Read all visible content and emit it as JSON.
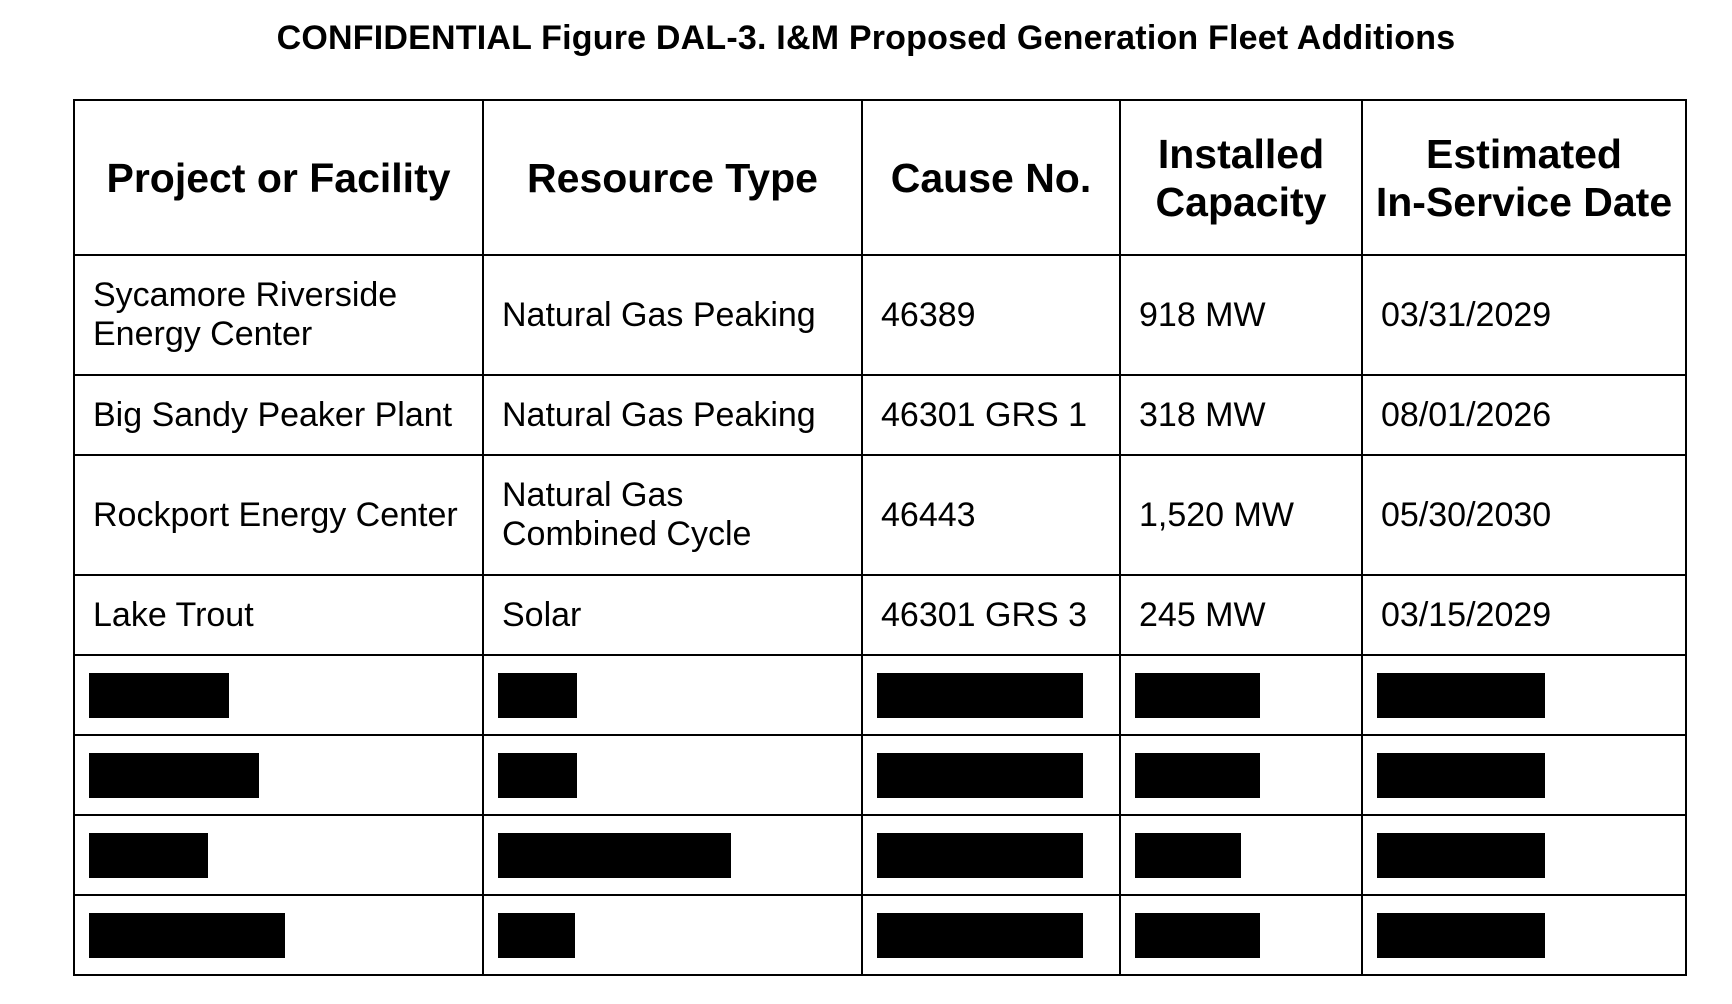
{
  "title": "CONFIDENTIAL Figure DAL-3. I&M Proposed Generation Fleet Additions",
  "table": {
    "headers": [
      {
        "line1": "Project or Facility",
        "line2": ""
      },
      {
        "line1": "Resource Type",
        "line2": ""
      },
      {
        "line1": "Cause No.",
        "line2": ""
      },
      {
        "line1": "Installed",
        "line2": "Capacity"
      },
      {
        "line1": "Estimated",
        "line2": "In-Service Date"
      }
    ],
    "rows": [
      {
        "project": {
          "line1": "Sycamore Riverside",
          "line2": "Energy Center"
        },
        "resource_type": {
          "line1": "Natural Gas Peaking",
          "line2": ""
        },
        "cause_no": "46389",
        "capacity": "918 MW",
        "in_service_date": "03/31/2029"
      },
      {
        "project": {
          "line1": "Big Sandy Peaker Plant",
          "line2": ""
        },
        "resource_type": {
          "line1": "Natural Gas Peaking",
          "line2": ""
        },
        "cause_no": "46301 GRS 1",
        "capacity": "318 MW",
        "in_service_date": "08/01/2026"
      },
      {
        "project": {
          "line1": "Rockport Energy Center",
          "line2": ""
        },
        "resource_type": {
          "line1": "Natural Gas",
          "line2": "Combined Cycle"
        },
        "cause_no": "46443",
        "capacity": "1,520 MW",
        "in_service_date": "05/30/2030"
      },
      {
        "project": {
          "line1": "Lake Trout",
          "line2": ""
        },
        "resource_type": {
          "line1": "Solar",
          "line2": ""
        },
        "cause_no": "46301 GRS 3",
        "capacity": "245 MW",
        "in_service_date": "03/15/2029"
      }
    ],
    "redacted_rows_count": 4
  }
}
